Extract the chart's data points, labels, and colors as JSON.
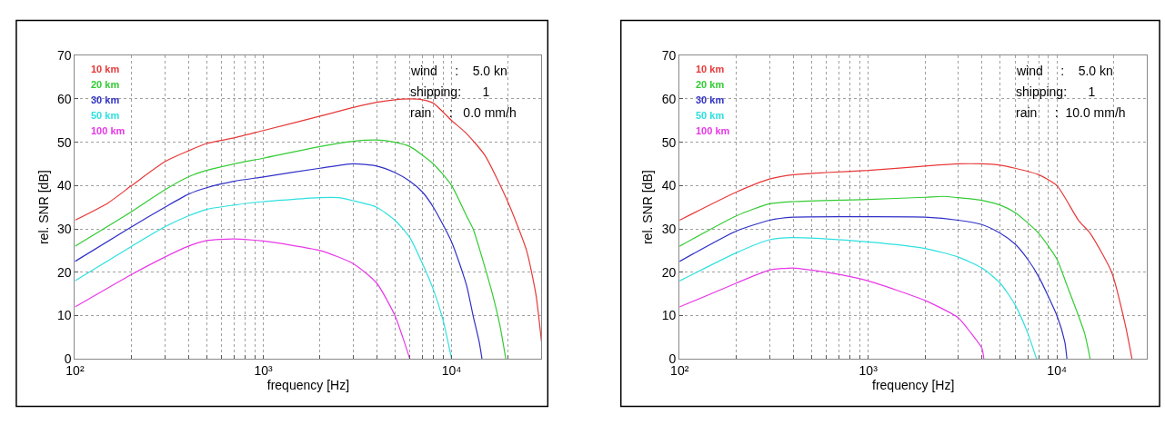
{
  "chart_data": [
    {
      "type": "line",
      "xlabel": "frequency [Hz]",
      "ylabel": "rel. SNR [dB]",
      "log": "x",
      "grid": true,
      "legend": "top left",
      "xlim": [
        100,
        30000
      ],
      "ylim": [
        0,
        70
      ],
      "xticks": [
        {
          "value": 100,
          "label": "10²"
        },
        {
          "value": 200,
          "label": null
        },
        {
          "value": 300,
          "label": null
        },
        {
          "value": 400,
          "label": null
        },
        {
          "value": 500,
          "label": null
        },
        {
          "value": 600,
          "label": null
        },
        {
          "value": 700,
          "label": null
        },
        {
          "value": 800,
          "label": null
        },
        {
          "value": 900,
          "label": null
        },
        {
          "value": 1000,
          "label": "10³"
        },
        {
          "value": 2000,
          "label": null
        },
        {
          "value": 3000,
          "label": null
        },
        {
          "value": 4000,
          "label": null
        },
        {
          "value": 5000,
          "label": null
        },
        {
          "value": 6000,
          "label": null
        },
        {
          "value": 7000,
          "label": null
        },
        {
          "value": 8000,
          "label": null
        },
        {
          "value": 9000,
          "label": null
        },
        {
          "value": 10000,
          "label": "10⁴"
        },
        {
          "value": 20000,
          "label": null
        }
      ],
      "yticks": [
        0,
        10,
        20,
        30,
        40,
        50,
        60,
        70
      ],
      "annotations": [
        "wind     :    5.0 kn",
        "shipping:      1",
        "rain     :   0.0 mm/h"
      ],
      "series": [
        {
          "name": "10 km",
          "color": "#e83838",
          "x": [
            100,
            150,
            200,
            300,
            400,
            500,
            700,
            1000,
            2000,
            3000,
            4000,
            5000,
            6000,
            7000,
            8000,
            10000,
            12000,
            15000,
            20000,
            25000,
            28000,
            30000
          ],
          "values": [
            32,
            36,
            40,
            45.5,
            48,
            49.7,
            51,
            52.7,
            56,
            58,
            59.2,
            59.8,
            60,
            59.8,
            59,
            55,
            52,
            47,
            36,
            25,
            15,
            4
          ]
        },
        {
          "name": "20 km",
          "color": "#33cc33",
          "x": [
            100,
            200,
            300,
            400,
            500,
            700,
            1000,
            2000,
            3000,
            4000,
            5000,
            6000,
            8000,
            10000,
            12000,
            13000,
            16000,
            18000,
            19400
          ],
          "values": [
            26,
            34,
            39,
            42,
            43.5,
            45,
            46.3,
            49,
            50.2,
            50.5,
            50,
            49,
            45,
            40,
            33,
            30,
            17,
            8,
            0
          ]
        },
        {
          "name": "30 km",
          "color": "#3030c8",
          "x": [
            100,
            200,
            300,
            400,
            500,
            700,
            1000,
            2000,
            3000,
            4000,
            5000,
            6000,
            7000,
            8000,
            10000,
            12000,
            13000,
            14000,
            14500
          ],
          "values": [
            22.5,
            30.5,
            35,
            38,
            39.5,
            41,
            42,
            44,
            45,
            44.5,
            43,
            41,
            38.5,
            35,
            27,
            17,
            10,
            4,
            0
          ]
        },
        {
          "name": "50 km",
          "color": "#2ee0e0",
          "x": [
            100,
            200,
            300,
            400,
            500,
            700,
            1000,
            2000,
            2500,
            3000,
            4000,
            5000,
            6000,
            7000,
            8000,
            9000,
            10000
          ],
          "values": [
            18,
            26,
            30.5,
            33,
            34.5,
            35.5,
            36.3,
            37.2,
            37.2,
            36.5,
            35,
            32,
            28,
            22,
            16,
            9,
            0
          ]
        },
        {
          "name": "100 km",
          "color": "#e838e8",
          "x": [
            100,
            200,
            300,
            400,
            500,
            700,
            1000,
            2000,
            3000,
            4000,
            5000,
            5500,
            6000
          ],
          "values": [
            12,
            19.5,
            23.5,
            26,
            27.3,
            27.7,
            27.2,
            25,
            22,
            17.5,
            10,
            5,
            0
          ]
        }
      ]
    },
    {
      "type": "line",
      "xlabel": "frequency [Hz]",
      "ylabel": "rel. SNR [dB]",
      "log": "x",
      "grid": true,
      "legend": "top left",
      "xlim": [
        100,
        30000
      ],
      "ylim": [
        0,
        70
      ],
      "xticks": [
        {
          "value": 100,
          "label": "10²"
        },
        {
          "value": 200,
          "label": null
        },
        {
          "value": 300,
          "label": null
        },
        {
          "value": 400,
          "label": null
        },
        {
          "value": 500,
          "label": null
        },
        {
          "value": 600,
          "label": null
        },
        {
          "value": 700,
          "label": null
        },
        {
          "value": 800,
          "label": null
        },
        {
          "value": 900,
          "label": null
        },
        {
          "value": 1000,
          "label": "10³"
        },
        {
          "value": 2000,
          "label": null
        },
        {
          "value": 3000,
          "label": null
        },
        {
          "value": 4000,
          "label": null
        },
        {
          "value": 5000,
          "label": null
        },
        {
          "value": 6000,
          "label": null
        },
        {
          "value": 7000,
          "label": null
        },
        {
          "value": 8000,
          "label": null
        },
        {
          "value": 9000,
          "label": null
        },
        {
          "value": 10000,
          "label": "10⁴"
        },
        {
          "value": 20000,
          "label": null
        }
      ],
      "yticks": [
        0,
        10,
        20,
        30,
        40,
        50,
        60,
        70
      ],
      "annotations": [
        "wind     :    5.0 kn",
        "shipping:      1",
        "rain     :  10.0 mm/h"
      ],
      "series": [
        {
          "name": "10 km",
          "color": "#e83838",
          "x": [
            100,
            200,
            300,
            400,
            600,
            1000,
            2000,
            3000,
            4000,
            5000,
            6000,
            8000,
            10000,
            13000,
            15000,
            19500,
            23000,
            25000
          ],
          "values": [
            32,
            38.5,
            41.5,
            42.5,
            43,
            43.5,
            44.5,
            45,
            45,
            44.7,
            44,
            42.5,
            40,
            32,
            29,
            20,
            8,
            0
          ]
        },
        {
          "name": "20 km",
          "color": "#33cc33",
          "x": [
            100,
            200,
            300,
            400,
            1000,
            2000,
            2500,
            3000,
            4000,
            5000,
            6000,
            8000,
            10000,
            11300,
            14000,
            15000
          ],
          "values": [
            26,
            33,
            35.8,
            36.3,
            36.8,
            37.3,
            37.5,
            37.2,
            36.6,
            35.5,
            33.8,
            29,
            23,
            17,
            6,
            0
          ]
        },
        {
          "name": "30 km",
          "color": "#3030c8",
          "x": [
            100,
            200,
            300,
            400,
            1000,
            2000,
            3000,
            4000,
            5000,
            6000,
            7000,
            8000,
            10000,
            11000,
            11300
          ],
          "values": [
            22.5,
            29.5,
            32,
            32.7,
            32.8,
            32.7,
            32,
            31,
            29,
            26.5,
            23,
            19,
            10,
            4,
            0
          ]
        },
        {
          "name": "50 km",
          "color": "#2ee0e0",
          "x": [
            100,
            200,
            300,
            400,
            600,
            1000,
            2000,
            3000,
            4000,
            5000,
            6000,
            7000,
            7800
          ],
          "values": [
            18,
            24.5,
            27.5,
            28,
            27.7,
            27,
            25.5,
            23.5,
            21,
            17.5,
            12.5,
            6,
            0
          ]
        },
        {
          "name": "100 km",
          "color": "#e838e8",
          "x": [
            100,
            200,
            300,
            400,
            500,
            700,
            1000,
            2000,
            3000,
            3500,
            4000,
            4100
          ],
          "values": [
            12,
            17.5,
            20.5,
            21,
            20.5,
            19.5,
            18,
            13.5,
            9.5,
            6,
            2.5,
            0
          ]
        }
      ]
    }
  ]
}
